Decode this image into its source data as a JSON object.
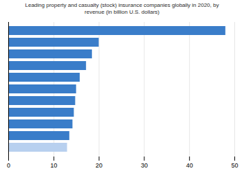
{
  "chart_data": {
    "type": "bar",
    "title": "Leading property and casualty (stock) insurance companies globally in 2020, by\nrevenue (in billion U.S. dollars)",
    "orientation": "horizontal",
    "categories": [
      null,
      null,
      null,
      null,
      null,
      null,
      null,
      null,
      null,
      null,
      null
    ],
    "values": [
      48.0,
      20.0,
      18.5,
      17.2,
      15.8,
      15.0,
      14.8,
      14.5,
      14.2,
      13.5,
      13.0
    ],
    "colors": [
      "#3a7dc9",
      "#3a7dc9",
      "#3a7dc9",
      "#3a7dc9",
      "#3a7dc9",
      "#3a7dc9",
      "#3a7dc9",
      "#3a7dc9",
      "#3a7dc9",
      "#3a7dc9",
      "#b8d0ef"
    ],
    "xlim": [
      0,
      50
    ],
    "xticks": [
      0,
      10,
      20,
      30,
      40,
      50
    ],
    "grid": true,
    "tick_labels": "x"
  }
}
